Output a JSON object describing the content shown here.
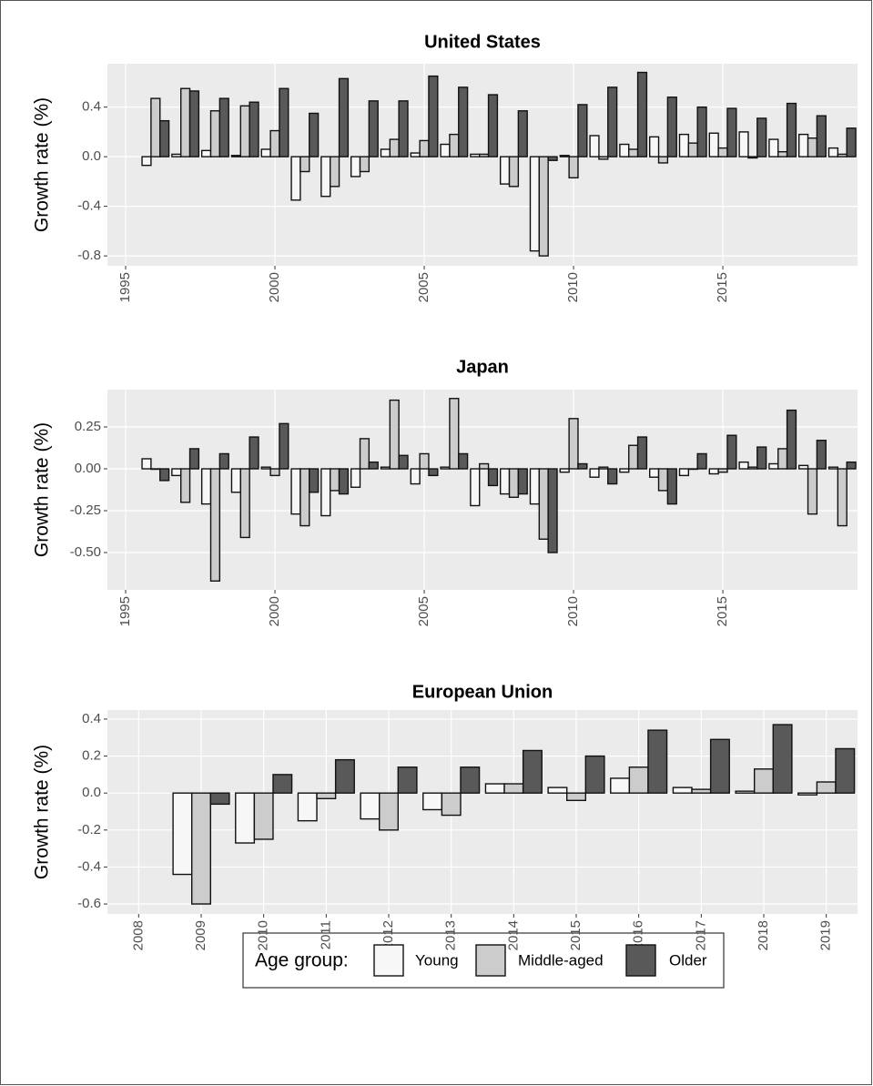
{
  "chart_data": [
    {
      "type": "bar",
      "title": "United States",
      "y_label": "Growth rate (%)",
      "legend_title": "Age group:",
      "x": [
        1996,
        1997,
        1998,
        1999,
        2000,
        2001,
        2002,
        2003,
        2004,
        2005,
        2006,
        2007,
        2008,
        2009,
        2010,
        2011,
        2012,
        2013,
        2014,
        2015,
        2016,
        2017,
        2018,
        2019
      ],
      "xlim": [
        1994.39,
        2019.51
      ],
      "xticks": [
        1995,
        2000,
        2005,
        2010,
        2015
      ],
      "ylim": [
        -0.88,
        0.75
      ],
      "yticks": [
        -0.8,
        -0.4,
        {
          "value": 0,
          "label": "0.0"
        },
        0.4
      ],
      "grid": true,
      "series": [
        {
          "name": "Young",
          "color": "#f7f7f7",
          "values": [
            -0.07,
            0.02,
            0.05,
            0.01,
            0.06,
            -0.35,
            -0.32,
            -0.16,
            0.06,
            0.03,
            0.1,
            0.02,
            -0.22,
            -0.76,
            0.01,
            0.17,
            0.1,
            0.16,
            0.18,
            0.19,
            0.2,
            0.14,
            0.18,
            0.07
          ]
        },
        {
          "name": "Middle-aged",
          "color": "#cccccc",
          "values": [
            0.47,
            0.55,
            0.37,
            0.41,
            0.21,
            -0.12,
            -0.24,
            -0.12,
            0.14,
            0.13,
            0.18,
            0.02,
            -0.24,
            -0.8,
            -0.17,
            -0.02,
            0.06,
            -0.05,
            0.11,
            0.07,
            -0.01,
            0.04,
            0.15,
            0.02
          ]
        },
        {
          "name": "Older",
          "color": "#595959",
          "values": [
            0.29,
            0.53,
            0.47,
            0.44,
            0.55,
            0.35,
            0.63,
            0.45,
            0.45,
            0.65,
            0.56,
            0.5,
            0.37,
            -0.03,
            0.42,
            0.56,
            0.68,
            0.48,
            0.4,
            0.39,
            0.31,
            0.43,
            0.33,
            0.23
          ]
        }
      ]
    },
    {
      "type": "bar",
      "title": "Japan",
      "y_label": "Growth rate (%)",
      "x": [
        1996,
        1997,
        1998,
        1999,
        2000,
        2001,
        2002,
        2003,
        2004,
        2005,
        2006,
        2007,
        2008,
        2009,
        2010,
        2011,
        2012,
        2013,
        2014,
        2015,
        2016,
        2017,
        2018,
        2019
      ],
      "xlim": [
        1994.39,
        2019.51
      ],
      "xticks": [
        1995,
        2000,
        2005,
        2010,
        2015
      ],
      "ylim": [
        -0.723,
        0.473
      ],
      "yticks": [
        {
          "value": -0.5,
          "label": "-0.50"
        },
        -0.25,
        {
          "value": 0,
          "label": "0.00"
        },
        0.25
      ],
      "grid": true,
      "series": [
        {
          "color": "#f7f7f7",
          "values": [
            0.06,
            -0.04,
            -0.21,
            -0.14,
            0.01,
            -0.27,
            -0.28,
            -0.11,
            0.01,
            -0.09,
            0.01,
            -0.22,
            -0.15,
            -0.21,
            -0.02,
            -0.05,
            -0.02,
            -0.05,
            -0.04,
            -0.03,
            0.04,
            0.03,
            0.02,
            0.01
          ]
        },
        {
          "color": "#cccccc",
          "values": [
            0.0,
            -0.2,
            -0.67,
            -0.41,
            -0.04,
            -0.34,
            -0.13,
            0.18,
            0.41,
            0.09,
            0.42,
            0.03,
            -0.17,
            -0.42,
            0.3,
            0.01,
            0.14,
            -0.13,
            0.0,
            -0.02,
            0.01,
            0.12,
            -0.27,
            -0.34
          ]
        },
        {
          "color": "#595959",
          "values": [
            -0.07,
            0.12,
            0.09,
            0.19,
            0.27,
            -0.14,
            -0.15,
            0.04,
            0.08,
            -0.04,
            0.09,
            -0.1,
            -0.15,
            -0.5,
            0.03,
            -0.09,
            0.19,
            -0.21,
            0.09,
            0.2,
            0.13,
            0.35,
            0.17,
            0.04
          ]
        }
      ]
    },
    {
      "type": "bar",
      "title": "European Union",
      "y_label": "Growth rate (%)",
      "categories": [
        "2008",
        "2009",
        "2010",
        "2011",
        "2012",
        "2013",
        "2014",
        "2015",
        "2016",
        "2017",
        "2018",
        "2019"
      ],
      "ylim": [
        -0.654,
        0.449
      ],
      "yticks": [
        -0.6,
        -0.4,
        -0.2,
        {
          "value": 0,
          "label": "0.0"
        },
        0.2,
        0.4
      ],
      "grid": true,
      "series": [
        {
          "color": "#f7f7f7",
          "values": [
            null,
            -0.44,
            -0.27,
            -0.15,
            -0.14,
            -0.09,
            0.05,
            0.03,
            0.08,
            0.03,
            0.01,
            -0.01
          ]
        },
        {
          "color": "#cccccc",
          "values": [
            null,
            -0.6,
            -0.25,
            -0.03,
            -0.2,
            -0.12,
            0.05,
            -0.04,
            0.14,
            0.02,
            0.13,
            0.06
          ]
        },
        {
          "color": "#595959",
          "values": [
            null,
            -0.06,
            0.1,
            0.18,
            0.14,
            0.14,
            0.23,
            0.2,
            0.34,
            0.29,
            0.37,
            0.24
          ]
        }
      ]
    }
  ]
}
